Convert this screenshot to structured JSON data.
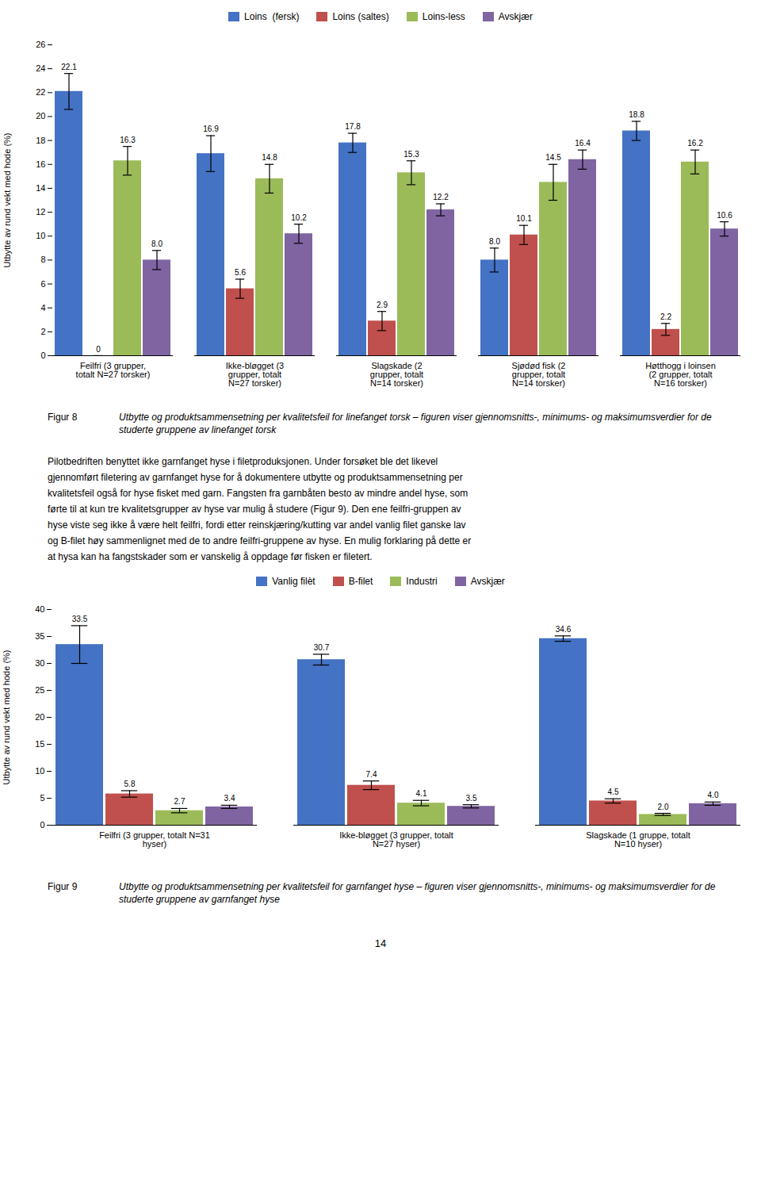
{
  "chart_data": [
    {
      "type": "bar",
      "ylabel": "Utbytte av rund vekt med hode (%)",
      "categories": [
        "Feilfri (3 grupper,\ntotalt N=27 torsker)",
        "Ikke-bløgget (3\ngrupper, totalt\nN=27 torsker)",
        "Slagskade (2\ngrupper, totalt\nN=14 torsker)",
        "Sjødød fisk (2\ngrupper, totalt\nN=14 torsker)",
        "Høtthogg i loinsen\n(2 grupper, totalt\nN=16 torsker)"
      ],
      "series": [
        {
          "name": "Loins  (fersk)",
          "color": "#4472C4",
          "values": [
            22.1,
            16.9,
            17.8,
            8.0,
            18.8
          ],
          "errors": [
            1.5,
            1.5,
            0.8,
            1.0,
            0.8
          ],
          "value_labels": [
            "22.1",
            "16.9",
            "17.8",
            "8.0",
            "18.8"
          ]
        },
        {
          "name": "Loins (saltes)",
          "color": "#C0504D",
          "values": [
            0.0,
            5.6,
            2.9,
            10.1,
            2.2
          ],
          "errors": [
            0.0,
            0.8,
            0.8,
            0.8,
            0.5
          ],
          "value_labels": [
            "0",
            "5.6",
            "2.9",
            "10.1",
            "2.2"
          ]
        },
        {
          "name": "Loins-less",
          "color": "#9BBB59",
          "values": [
            16.3,
            14.8,
            15.3,
            14.5,
            16.2
          ],
          "errors": [
            1.2,
            1.2,
            1.0,
            1.5,
            1.0
          ],
          "value_labels": [
            "16.3",
            "14.8",
            "15.3",
            "14.5",
            "16.2"
          ]
        },
        {
          "name": "Avskjær",
          "color": "#8064A2",
          "values": [
            8.0,
            10.2,
            12.2,
            16.4,
            10.6
          ],
          "errors": [
            0.8,
            0.8,
            0.5,
            0.8,
            0.6
          ],
          "value_labels": [
            "8.0",
            "10.2",
            "12.2",
            "16.4",
            "10.6"
          ]
        }
      ],
      "ylim": [
        0,
        26
      ],
      "yticks": [
        0,
        2,
        4,
        6,
        8,
        10,
        12,
        14,
        16,
        18,
        20,
        22,
        24,
        26
      ],
      "grid": false,
      "data_labels": true,
      "legend": "top",
      "caption_label": "Figur 8",
      "caption": "Utbytte og produktsammensetning per kvalitetsfeil for linefanget torsk – figuren viser gjennomsnitts-, minimums- og maksimumsverdier for de studerte gruppene av linefanget torsk"
    },
    {
      "type": "bar",
      "ylabel": "Utbytte av rund vekt med hode (%)",
      "categories": [
        "Feilfri (3 grupper, totalt N=31\nhyser)",
        "Ikke-bløgget (3 grupper, totalt\nN=27 hyser)",
        "Slagskade (1 gruppe, totalt\nN=10 hyser)"
      ],
      "series": [
        {
          "name": "Vanlig filèt",
          "color": "#4472C4",
          "values": [
            33.5,
            30.7,
            34.6
          ],
          "errors": [
            3.5,
            1.0,
            0.5
          ],
          "value_labels": [
            "33.5",
            "30.7",
            "34.6"
          ]
        },
        {
          "name": "B-filet",
          "color": "#C0504D",
          "values": [
            5.8,
            7.4,
            4.5
          ],
          "errors": [
            0.6,
            0.8,
            0.4
          ],
          "value_labels": [
            "5.8",
            "7.4",
            "4.5"
          ]
        },
        {
          "name": "Industri",
          "color": "#9BBB59",
          "values": [
            2.7,
            4.1,
            2.0
          ],
          "errors": [
            0.4,
            0.5,
            0.2
          ],
          "value_labels": [
            "2.7",
            "4.1",
            "2.0"
          ]
        },
        {
          "name": "Avskjær",
          "color": "#8064A2",
          "values": [
            3.4,
            3.5,
            4.0
          ],
          "errors": [
            0.3,
            0.3,
            0.3
          ],
          "value_labels": [
            "3.4",
            "3.5",
            "4.0"
          ]
        }
      ],
      "ylim": [
        0,
        40
      ],
      "yticks": [
        0,
        5,
        10,
        15,
        20,
        25,
        30,
        35,
        40
      ],
      "grid": false,
      "data_labels": true,
      "legend": "top",
      "caption_label": "Figur 9",
      "caption": "Utbytte og produktsammensetning per kvalitetsfeil for garnfanget hyse – figuren viser gjennomsnitts-, minimums- og maksimumsverdier for de studerte gruppene av garnfanget hyse"
    }
  ],
  "paragraph": [
    "Pilotbedriften benyttet ikke garnfanget hyse i filetproduksjonen. Under forsøket ble det likevel",
    "gjennomført filetering av garnfanget hyse for å dokumentere utbytte og produktsammensetning per",
    "kvalitetsfeil også for hyse fisket med garn. Fangsten fra garnbåten besto av mindre andel hyse, som",
    "førte til at kun tre kvalitetsgrupper av hyse var mulig å studere (Figur 9). Den ene feilfri-gruppen av",
    "hyse viste seg ikke å være helt feilfri, fordi etter reinskjæring/kutting var andel vanlig filet ganske lav",
    "og B-filet høy sammenlignet med de to andre feilfri-gruppene av hyse. En mulig forklaring på dette er",
    "at hysa kan ha fangstskader som er vanskelig å oppdage før fisken er filetert."
  ],
  "page_number": "14"
}
